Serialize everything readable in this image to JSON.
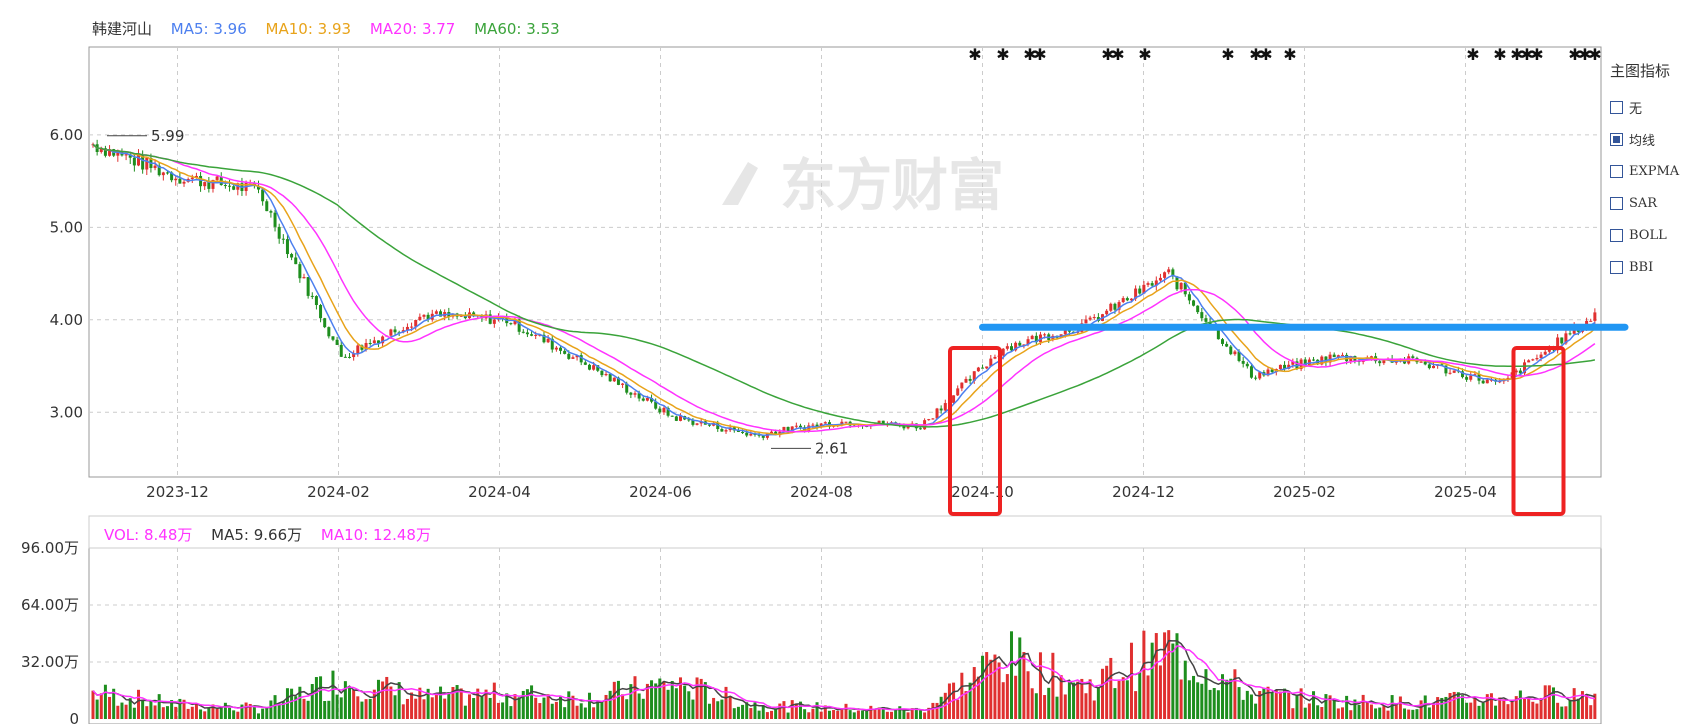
{
  "header": {
    "stock_name": "韩建河山",
    "ma5": "MA5: 3.96",
    "ma10": "MA10: 3.93",
    "ma20": "MA20: 3.77",
    "ma60": "MA60: 3.53"
  },
  "volume_header": {
    "vol": "VOL: 8.48万",
    "ma5": "MA5: 9.66万",
    "ma10": "MA10: 12.48万"
  },
  "side_panel": {
    "title": "主图指标",
    "options": [
      {
        "label": "无",
        "checked": false
      },
      {
        "label": "均线",
        "checked": true
      },
      {
        "label": "EXPMA",
        "checked": false
      },
      {
        "label": "SAR",
        "checked": false
      },
      {
        "label": "BOLL",
        "checked": false
      },
      {
        "label": "BBI",
        "checked": false
      }
    ]
  },
  "watermark": "东方财富",
  "colors": {
    "up": "#e03030",
    "down": "#1e8e1e",
    "ma5": "#4c7fef",
    "ma10": "#e8a31a",
    "ma20": "#ff33ff",
    "ma60": "#3aa33a",
    "vol_ma5": "#444444",
    "highlight_line": "#2196f3",
    "highlight_box": "#ee2222"
  },
  "chart_data": [
    {
      "type": "candlestick",
      "x_ticks": [
        "2023-12",
        "2024-02",
        "2024-04",
        "2024-06",
        "2024-08",
        "2024-10",
        "2024-12",
        "2025-02",
        "2025-04"
      ],
      "y_ticks": [
        "3.00",
        "4.00",
        "5.00",
        "6.00"
      ],
      "ylim": [
        2.3,
        6.95
      ],
      "grid": true,
      "annotations": [
        {
          "text": "5.99",
          "value": 5.99,
          "x": "2023-11"
        },
        {
          "text": "2.61",
          "value": 2.61,
          "x": "2024-07"
        }
      ],
      "horizontal_line": {
        "value": 3.92,
        "from": "2024-10",
        "to": "2025-05"
      },
      "highlight_boxes": [
        {
          "from": "2024-09",
          "to": "2024-10"
        },
        {
          "from": "2025-04",
          "to": "2025-05"
        }
      ],
      "monthly_close": [
        {
          "month": "2023-11",
          "close": 5.9
        },
        {
          "month": "2023-12",
          "close": 5.55
        },
        {
          "month": "2024-01",
          "close": 5.4
        },
        {
          "month": "2024-02",
          "close": 3.6
        },
        {
          "month": "2024-03",
          "close": 4.05
        },
        {
          "month": "2024-04",
          "close": 4.0
        },
        {
          "month": "2024-05",
          "close": 3.5
        },
        {
          "month": "2024-06",
          "close": 2.95
        },
        {
          "month": "2024-07",
          "close": 2.75
        },
        {
          "month": "2024-08",
          "close": 2.9
        },
        {
          "month": "2024-09",
          "close": 2.85
        },
        {
          "month": "2024-10",
          "close": 3.7
        },
        {
          "month": "2024-11",
          "close": 3.95
        },
        {
          "month": "2024-12",
          "close": 4.5
        },
        {
          "month": "2025-01",
          "close": 3.4
        },
        {
          "month": "2025-02",
          "close": 3.6
        },
        {
          "month": "2025-03",
          "close": 3.55
        },
        {
          "month": "2025-04",
          "close": 3.3
        },
        {
          "month": "2025-05",
          "close": 3.95
        }
      ]
    },
    {
      "type": "bar",
      "y_ticks": [
        "0",
        "32.00万",
        "64.00万",
        "96.00万"
      ],
      "ylim": [
        0,
        96
      ],
      "unit": "万",
      "grid": true,
      "monthly_volume": [
        {
          "month": "2023-11",
          "volume": 15
        },
        {
          "month": "2023-12",
          "volume": 8
        },
        {
          "month": "2024-01",
          "volume": 6
        },
        {
          "month": "2024-02",
          "volume": 22
        },
        {
          "month": "2024-03",
          "volume": 12
        },
        {
          "month": "2024-04",
          "volume": 14
        },
        {
          "month": "2024-05",
          "volume": 12
        },
        {
          "month": "2024-06",
          "volume": 20
        },
        {
          "month": "2024-07",
          "volume": 8
        },
        {
          "month": "2024-08",
          "volume": 6
        },
        {
          "month": "2024-09",
          "volume": 5
        },
        {
          "month": "2024-10",
          "volume": 35
        },
        {
          "month": "2024-11",
          "volume": 18
        },
        {
          "month": "2024-12",
          "volume": 40
        },
        {
          "month": "2025-01",
          "volume": 14
        },
        {
          "month": "2025-02",
          "volume": 10
        },
        {
          "month": "2025-03",
          "volume": 9
        },
        {
          "month": "2025-04",
          "volume": 12
        },
        {
          "month": "2025-05",
          "volume": 14
        }
      ]
    }
  ]
}
